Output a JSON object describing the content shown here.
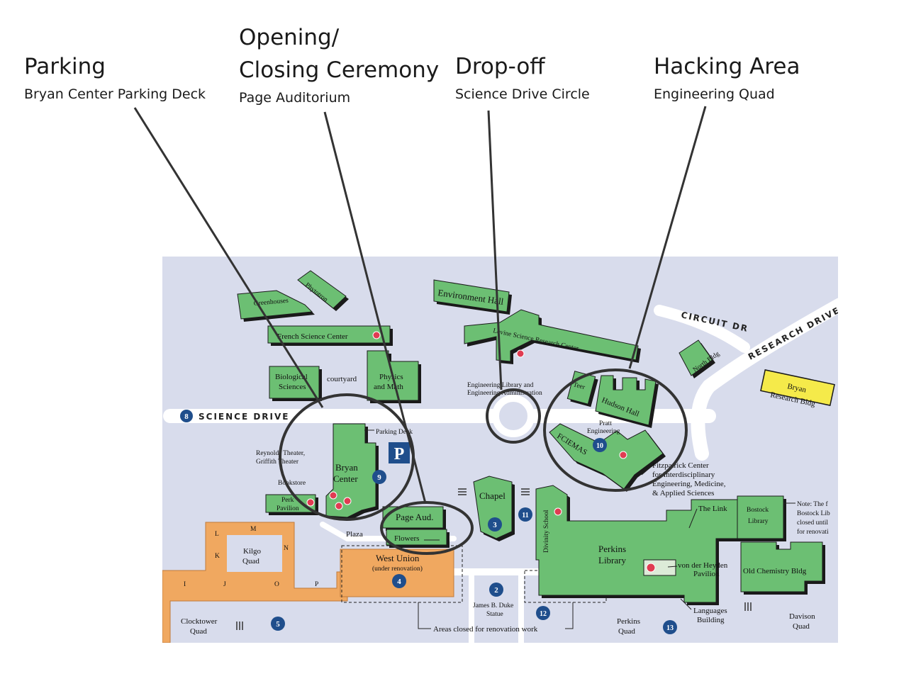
{
  "callouts": [
    {
      "title": "Parking",
      "subtitle": "Bryan Center Parking Deck"
    },
    {
      "title": "Opening/\nClosing Ceremony",
      "subtitle": "Page Auditorium"
    },
    {
      "title": "Drop-off",
      "subtitle": "Science Drive Circle"
    },
    {
      "title": "Hacking Area",
      "subtitle": "Engineering Quad"
    }
  ],
  "roads": {
    "science_drive": "SCIENCE DRIVE",
    "science_drive_num": "8",
    "circuit_dr": "CIRCUIT DR",
    "research_drive": "RESEARCH DRIVE"
  },
  "buildings": {
    "greenhouses": "Greenhouses",
    "phytotron": "Phytotron",
    "french": "French Science Center",
    "bio_1": "Biological",
    "bio_2": "Sciences",
    "courtyard": "courtyard",
    "phys_1": "Physics",
    "phys_2": "and Math",
    "env_hall": "Environment Hall",
    "levine": "Levine Science Research Center",
    "eng_lib_1": "Engineering Library and",
    "eng_lib_2": "Engineering Administration",
    "teer": "Teer",
    "hudson": "Hudson Hall",
    "north": "North Bldg",
    "bryan_research_1": "Bryan",
    "bryan_research_2": "Research Bldg",
    "pratt_1": "Pratt",
    "pratt_2": "Engineering",
    "fciemas": "FCIEMAS",
    "fitz_1": "Fitzpatrick Center",
    "fitz_2": "for Interdisciplinary",
    "fitz_3": "Engineering, Medicine,",
    "fitz_4": "& Applied Sciences",
    "parking_deck": "Parking Deck",
    "parking_p": "P",
    "reynolds_1": "Reynolds Theater,",
    "reynolds_2": "Griffith Theater",
    "bryan_1": "Bryan",
    "bryan_2": "Center",
    "bookstore": "Bookstore",
    "perk_1": "Perk",
    "perk_2": "Pavilion",
    "page_aud": "Page Aud.",
    "flowers": "Flowers",
    "plaza": "Plaza",
    "chapel": "Chapel",
    "divinity": "Divinity School",
    "link": "The Link",
    "bostock_1": "Bostock",
    "bostock_2": "Library",
    "note_1": "Note: The f",
    "note_2": "Bostock Lib",
    "note_3": "closed until",
    "note_4": "for renovati",
    "perkins_1": "Perkins",
    "perkins_2": "Library",
    "vdh_1": "von der Heyden",
    "vdh_2": "Pavilion",
    "old_chem": "Old Chemistry Bldg",
    "languages_1": "Languages",
    "languages_2": "Building",
    "west_union_1": "West Union",
    "west_union_2": "(under renovation)",
    "kilgo_1": "Kilgo",
    "kilgo_2": "Quad",
    "clocktower_1": "Clocktower",
    "clocktower_2": "Quad",
    "duke_1": "James B. Duke",
    "duke_2": "Statue",
    "areas_closed": "Areas closed for renovation work",
    "perkins_quad_1": "Perkins",
    "perkins_quad_2": "Quad",
    "davison_1": "Davison",
    "davison_2": "Quad"
  },
  "quad_letters": [
    "L",
    "M",
    "N",
    "K",
    "I",
    "J",
    "O",
    "P"
  ],
  "markers": [
    "2",
    "3",
    "4",
    "5",
    "9",
    "10",
    "11",
    "12",
    "13"
  ],
  "colors": {
    "map_bg": "#d8dcec",
    "building": "#6cbf73",
    "building_shadow": "#1a1a1a",
    "west_campus": "#f0a860",
    "marker": "#1f4e8c",
    "dining": "#e03c52",
    "research_bldg": "#f5ea4a"
  }
}
